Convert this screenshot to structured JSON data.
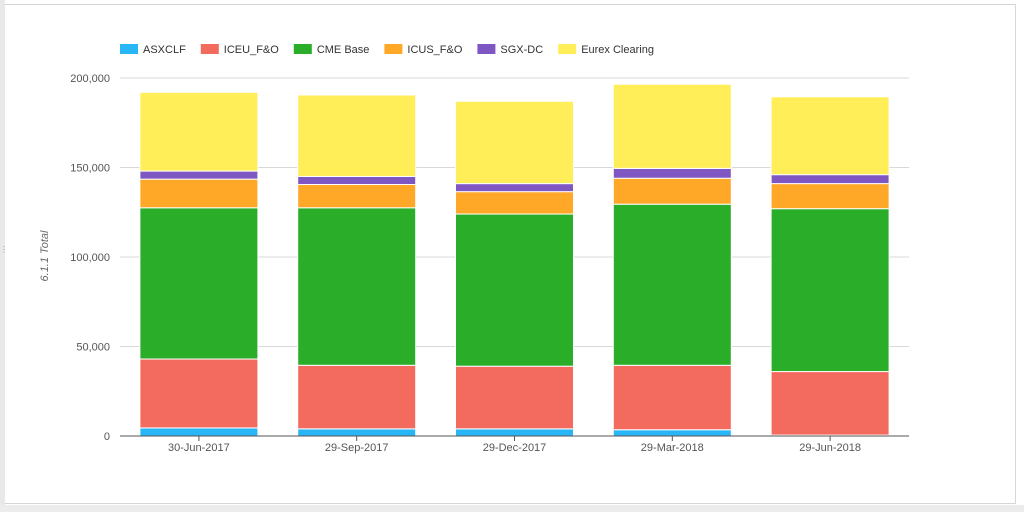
{
  "chart_data": {
    "type": "bar",
    "stacked": true,
    "ylabel": "6.1.1 Total",
    "xlabel": "",
    "title": "",
    "ylim": [
      0,
      200000
    ],
    "yticks": [
      "0",
      "50,000",
      "100,000",
      "150,000",
      "200,000"
    ],
    "ytick_values": [
      0,
      50000,
      100000,
      150000,
      200000
    ],
    "grid": true,
    "legend_position": "top-left",
    "categories": [
      "30-Jun-2017",
      "29-Sep-2017",
      "29-Dec-2017",
      "29-Mar-2018",
      "29-Jun-2018"
    ],
    "series": [
      {
        "name": "ASXCLF",
        "color": "#29b6f6",
        "values": [
          4500,
          4000,
          4000,
          3500,
          500
        ]
      },
      {
        "name": "ICEU_F&O",
        "color": "#f26b5e",
        "values": [
          38500,
          35500,
          35000,
          36000,
          35500
        ]
      },
      {
        "name": "CME Base",
        "color": "#2aae2a",
        "values": [
          84500,
          88000,
          85000,
          90000,
          91000
        ]
      },
      {
        "name": "ICUS_F&O",
        "color": "#ffa726",
        "values": [
          16000,
          13000,
          12500,
          14500,
          14000
        ]
      },
      {
        "name": "SGX-DC",
        "color": "#7e57c2",
        "values": [
          4500,
          4500,
          4500,
          5500,
          5000
        ]
      },
      {
        "name": "Eurex Clearing",
        "color": "#ffee58",
        "values": [
          44000,
          45500,
          46000,
          47000,
          43500
        ]
      }
    ]
  }
}
